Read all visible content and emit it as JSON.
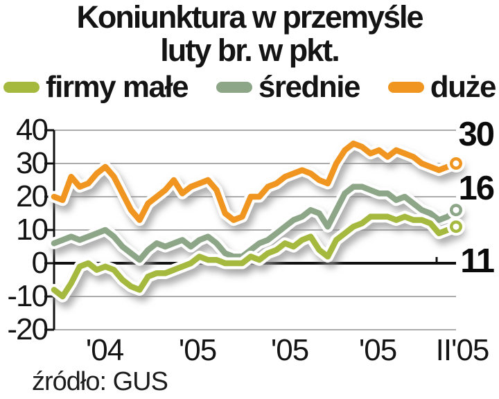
{
  "title": {
    "line1": "Koniunktura w przemyśle",
    "line2": "luty br. w pkt."
  },
  "legend": [
    {
      "label": "firmy małe",
      "color": "#a6b93f"
    },
    {
      "label": "średnie",
      "color": "#8ca687"
    },
    {
      "label": "duże",
      "color": "#f0951f"
    }
  ],
  "source": "źródło: GUS",
  "chart_data": {
    "type": "line",
    "title": "Koniunktura w przemyśle",
    "subtitle": "luty br. w pkt.",
    "ylim": [
      -20,
      40
    ],
    "y_ticks": [
      40,
      30,
      20,
      10,
      0,
      -10,
      -20
    ],
    "y_tick_labels": [
      "40",
      "30",
      "20",
      "10",
      "0",
      "-10",
      "-20"
    ],
    "x_tick_labels": [
      "'04",
      "'05",
      "'05",
      "'05",
      "II'05"
    ],
    "grid": true,
    "zero_line_emphasized": true,
    "legend_position": "top",
    "line_style": "thick color stroke with white halo and soft gray drop shadow, white dot end markers",
    "end_labels": [
      {
        "series": "duże",
        "value": 30
      },
      {
        "series": "średnie",
        "value": 16
      },
      {
        "series": "firmy małe",
        "value": 11
      }
    ],
    "series": [
      {
        "name": "firmy małe",
        "color": "#a6b93f",
        "values": [
          -8,
          -10,
          -6,
          -1,
          0,
          -2,
          -1,
          -2,
          -5,
          -7,
          -8,
          -4,
          -3,
          -3,
          -2,
          -1,
          0,
          2,
          1,
          1,
          0,
          0,
          0,
          2,
          1,
          3,
          4,
          6,
          5,
          7,
          8,
          4,
          2,
          7,
          9,
          11,
          12,
          14,
          14,
          14,
          13,
          14,
          13,
          13,
          12,
          9,
          10,
          11
        ]
      },
      {
        "name": "średnie",
        "color": "#8ca687",
        "values": [
          6,
          7,
          8,
          7,
          8,
          9,
          10,
          8,
          5,
          3,
          1,
          4,
          6,
          5,
          6,
          7,
          5,
          7,
          8,
          6,
          3,
          2,
          2,
          4,
          6,
          7,
          9,
          11,
          13,
          14,
          16,
          15,
          11,
          16,
          21,
          23,
          23,
          22,
          21,
          21,
          19,
          20,
          18,
          16,
          15,
          13,
          14,
          16
        ]
      },
      {
        "name": "duże",
        "color": "#f0951f",
        "values": [
          20,
          19,
          26,
          23,
          24,
          27,
          29,
          26,
          21,
          16,
          13,
          18,
          20,
          22,
          25,
          21,
          23,
          24,
          25,
          22,
          15,
          13,
          14,
          20,
          20,
          23,
          24,
          26,
          27,
          28,
          27,
          25,
          24,
          30,
          34,
          36,
          35,
          33,
          34,
          32,
          34,
          33,
          32,
          30,
          29,
          28,
          29,
          30
        ]
      }
    ],
    "source": "źródło: GUS"
  }
}
